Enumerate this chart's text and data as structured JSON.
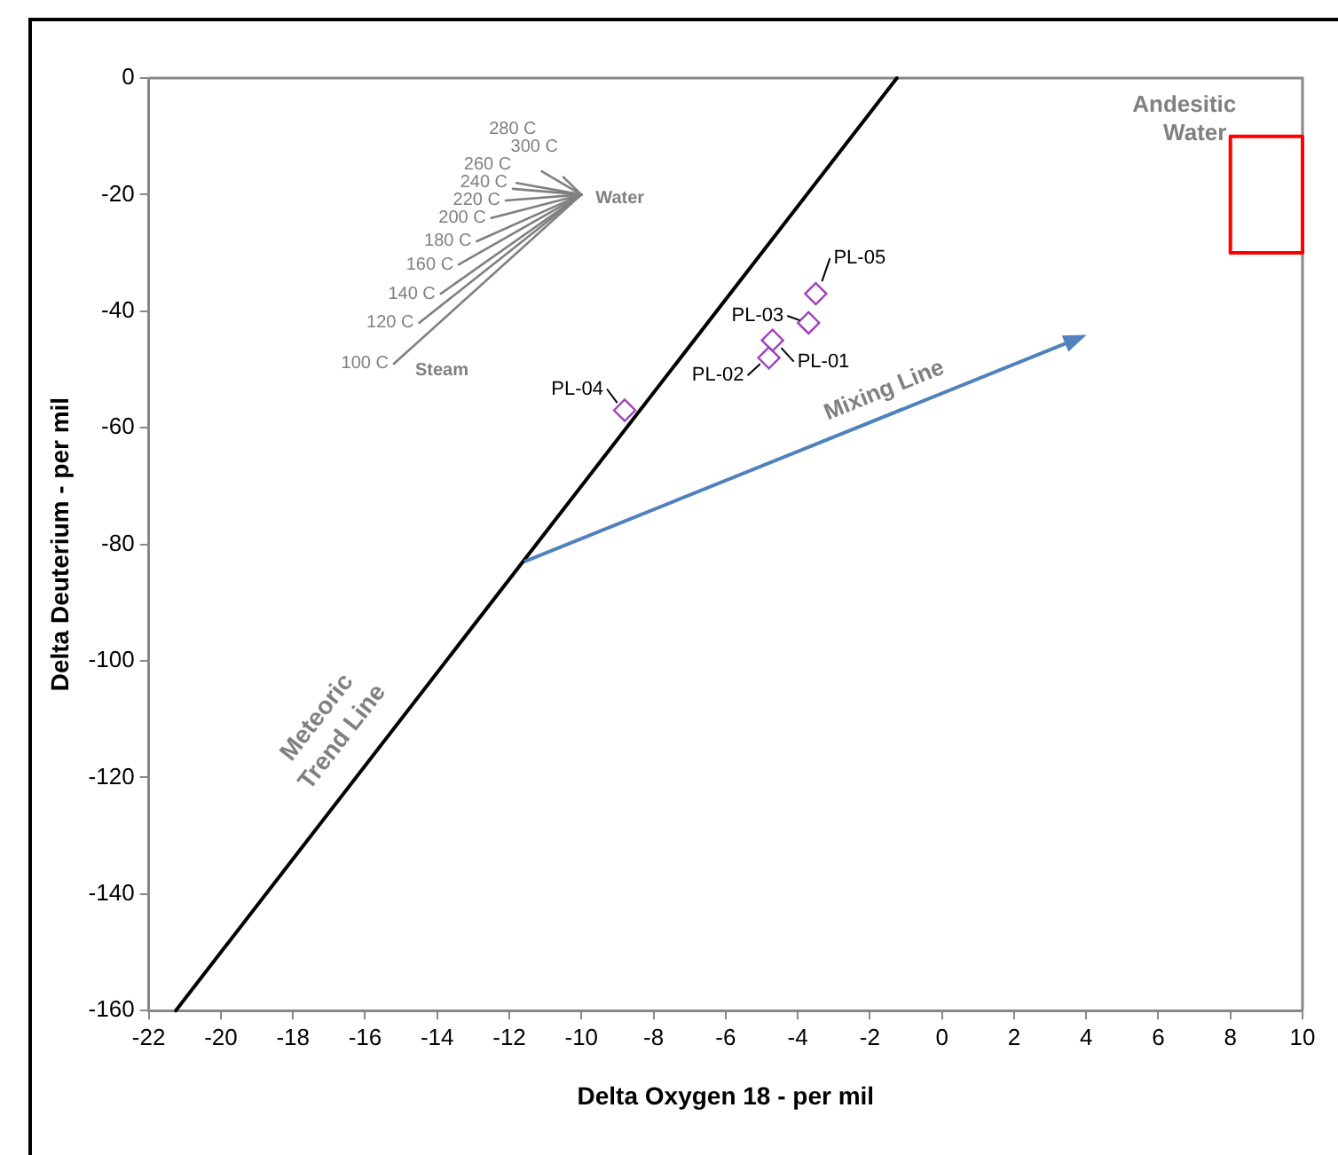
{
  "chart_data": {
    "type": "line",
    "xlabel": "Delta Oxygen 18 - per mil",
    "ylabel": "Delta Deuterium - per mil",
    "xlim": [
      -22,
      10
    ],
    "ylim": [
      -160,
      0
    ],
    "xticks": [
      -22,
      -20,
      -18,
      -16,
      -14,
      -12,
      -10,
      -8,
      -6,
      -4,
      -2,
      0,
      2,
      4,
      6,
      8,
      10
    ],
    "yticks": [
      -160,
      -140,
      -120,
      -100,
      -80,
      -60,
      -40,
      -20,
      0
    ],
    "grid": false,
    "legend": false,
    "line_style": "solid",
    "series": [
      {
        "name": "Meteoric Trend Line",
        "color": "#000000",
        "x": [
          -21.25,
          -1.25
        ],
        "values": [
          -160,
          0
        ]
      },
      {
        "name": "Andesitic Water",
        "color": "#ff0000",
        "x": [
          8,
          8,
          10,
          10
        ],
        "values": [
          -30,
          -10,
          -10,
          -30
        ]
      },
      {
        "name": "100 C",
        "color": "#808080",
        "x": [
          -15.2,
          -10
        ],
        "values": [
          -49,
          -20
        ]
      },
      {
        "name": "120 C",
        "color": "#808080",
        "x": [
          -14.5,
          -10
        ],
        "values": [
          -42,
          -20
        ]
      },
      {
        "name": "140 C",
        "color": "#808080",
        "x": [
          -13.9,
          -10
        ],
        "values": [
          -37,
          -20
        ]
      },
      {
        "name": "160 C",
        "color": "#808080",
        "x": [
          -13.4,
          -10
        ],
        "values": [
          -32,
          -20
        ]
      },
      {
        "name": "180 C",
        "color": "#808080",
        "x": [
          -12.9,
          -10
        ],
        "values": [
          -28,
          -20
        ]
      },
      {
        "name": "200 C",
        "color": "#808080",
        "x": [
          -12.5,
          -10
        ],
        "values": [
          -24,
          -20
        ]
      },
      {
        "name": "220 C",
        "color": "#808080",
        "x": [
          -12.1,
          -10
        ],
        "values": [
          -21,
          -20
        ]
      },
      {
        "name": "240 C",
        "color": "#808080",
        "x": [
          -11.9,
          -10
        ],
        "values": [
          -19,
          -20
        ]
      },
      {
        "name": "260 C",
        "color": "#808080",
        "x": [
          -11.8,
          -10
        ],
        "values": [
          -18,
          -20
        ]
      },
      {
        "name": "280 C",
        "color": "#808080",
        "x": [
          -11.1,
          -10
        ],
        "values": [
          -16,
          -20
        ]
      },
      {
        "name": "300 C",
        "color": "#808080",
        "x": [
          -10.5,
          -10
        ],
        "values": [
          -17,
          -20
        ]
      },
      {
        "type": "scatter",
        "marker": "diamond",
        "color": "#a040c0",
        "x": [
          -4.7,
          -4.8,
          -3.7,
          -8.8,
          -3.5
        ],
        "values": [
          -45,
          -48,
          -42,
          -57,
          -37
        ]
      },
      {
        "color": "#ff0000",
        "x": [
          8,
          10
        ],
        "values": [
          -30,
          -30
        ]
      }
    ],
    "annotations": [
      {
        "text": "PL-01",
        "x": -4.7,
        "y": -45
      },
      {
        "text": "PL-02",
        "x": -4.8,
        "y": -48
      },
      {
        "text": "PL-03",
        "x": -3.7,
        "y": -42
      },
      {
        "text": "PL-04",
        "x": -8.8,
        "y": -57
      },
      {
        "text": "PL-05",
        "x": -3.5,
        "y": -37
      },
      {
        "text": "Water",
        "x": -10,
        "y": -20
      },
      {
        "text": "Steam",
        "x": -15.2,
        "y": -49
      },
      "Mixing Line"
    ]
  }
}
